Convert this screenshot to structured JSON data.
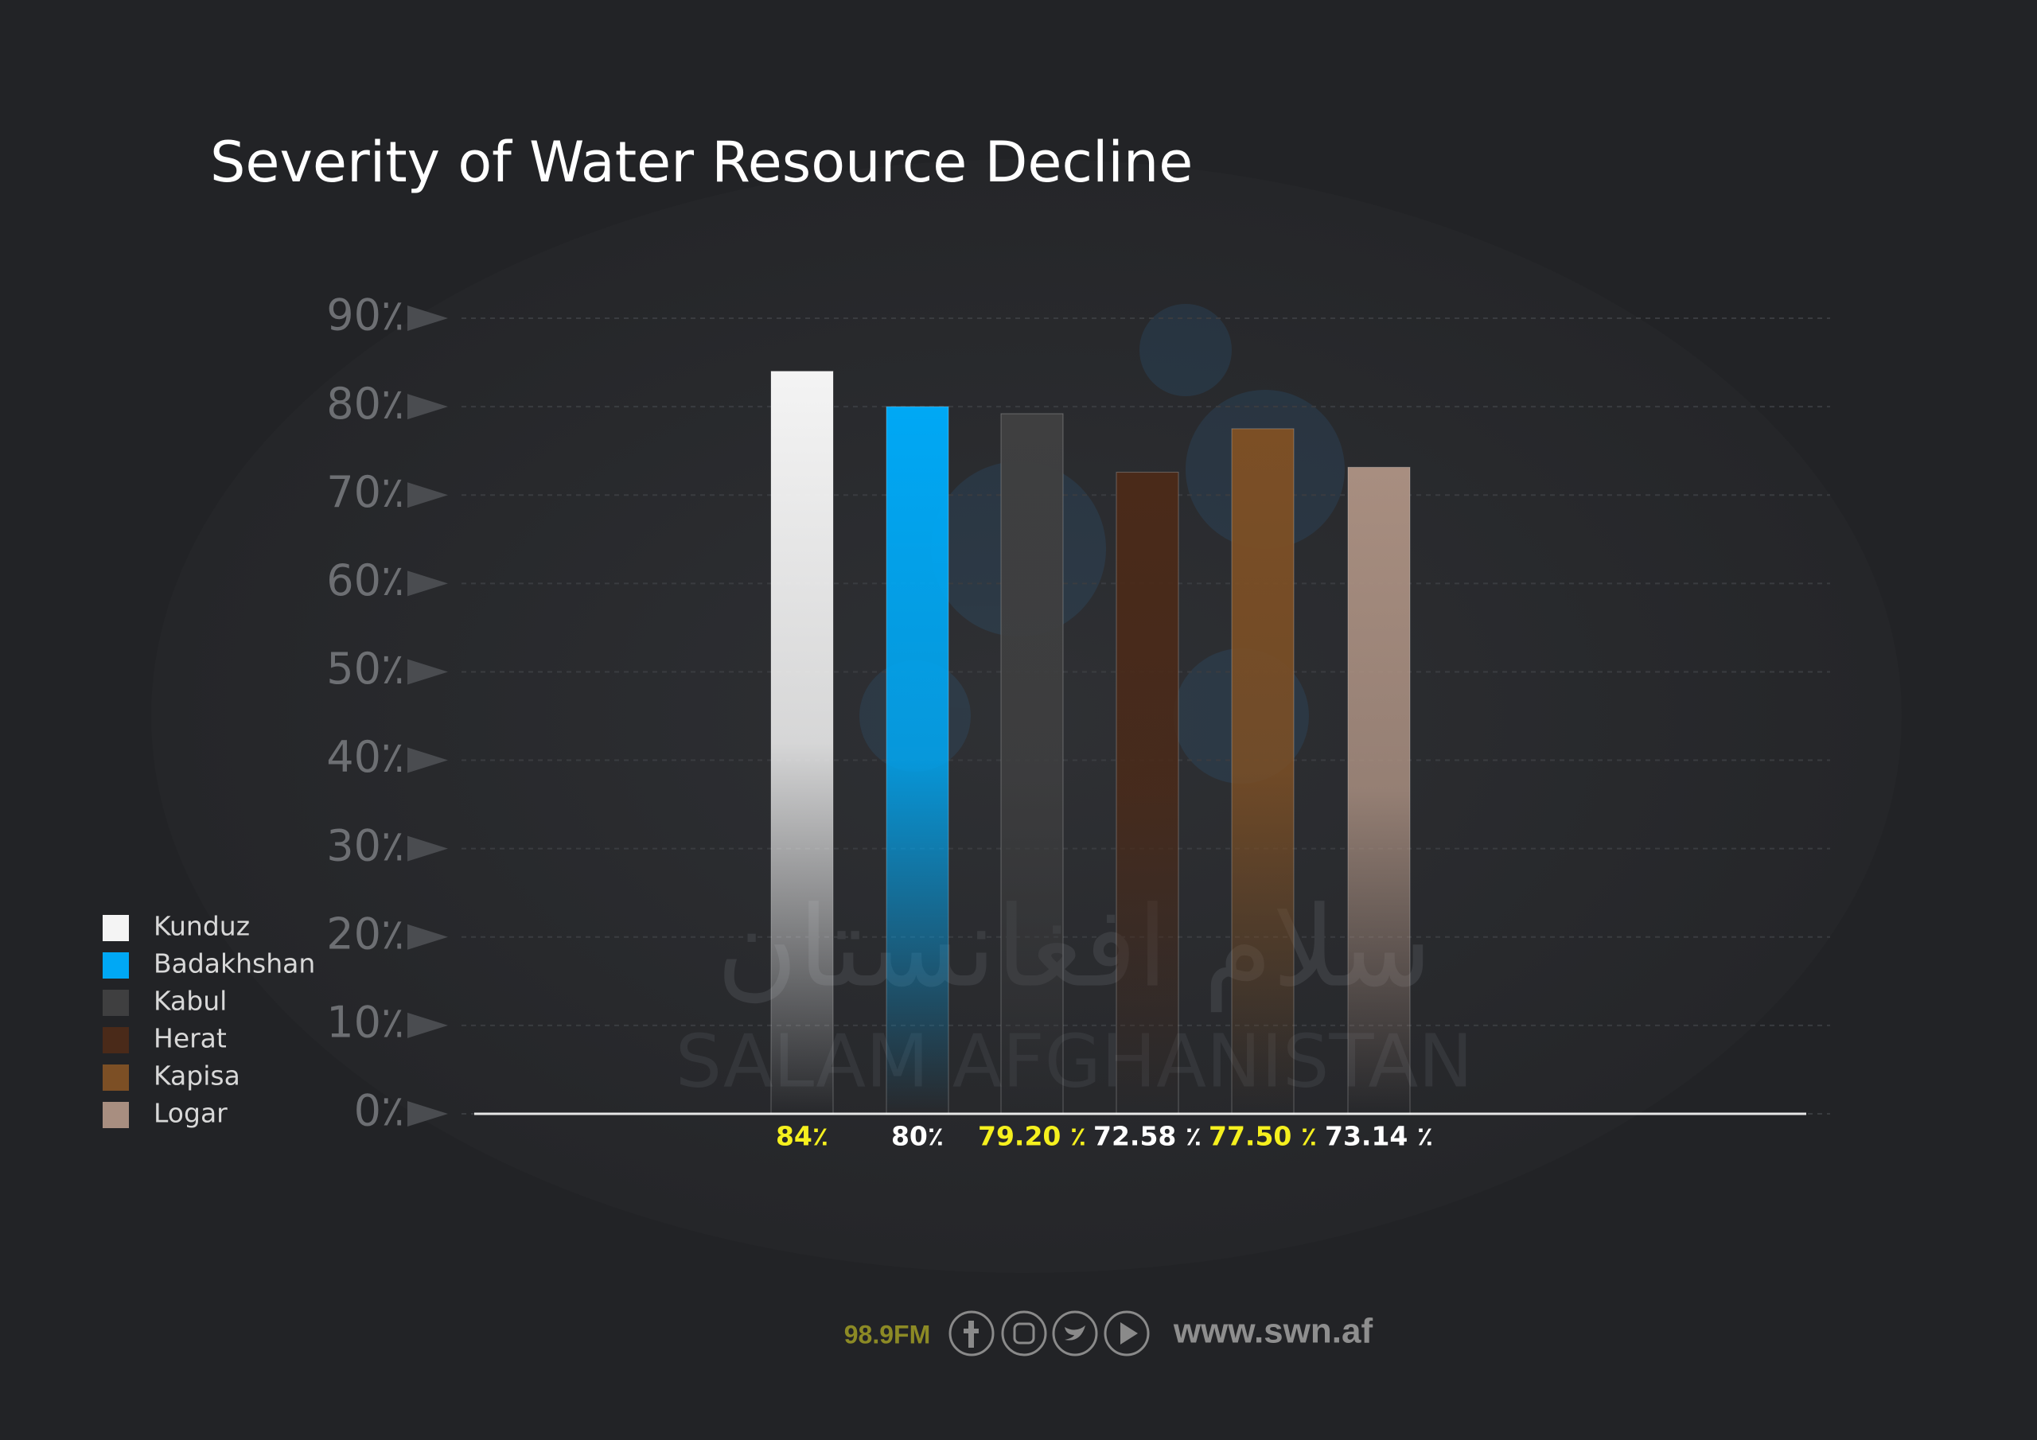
{
  "chart_data": {
    "type": "bar",
    "title": "Severity of Water Resource Decline",
    "categories": [
      "Kunduz",
      "Badakhshan",
      "Kabul",
      "Herat",
      "Kapisa",
      "Logar"
    ],
    "values": [
      84,
      80,
      79.2,
      72.58,
      77.5,
      73.14
    ],
    "value_labels": [
      "84٪",
      "80٪",
      "79.20 ٪",
      "72.58 ٪",
      "77.50 ٪",
      "73.14 ٪"
    ],
    "value_label_colors": [
      "#f5f01e",
      "#ffffff",
      "#f5f01e",
      "#ffffff",
      "#f5f01e",
      "#ffffff"
    ],
    "colors": [
      "#f4f4f4",
      "#00a8f5",
      "#3f3f40",
      "#4a2a19",
      "#7c4f25",
      "#a88e80"
    ],
    "ylim": [
      0,
      90
    ],
    "yticks": [
      {
        "value": 0,
        "label": "0٪"
      },
      {
        "value": 10,
        "label": "10٪"
      },
      {
        "value": 20,
        "label": "20٪"
      },
      {
        "value": 30,
        "label": "30٪"
      },
      {
        "value": 40,
        "label": "40٪"
      },
      {
        "value": 50,
        "label": "50٪"
      },
      {
        "value": 60,
        "label": "60٪"
      },
      {
        "value": 70,
        "label": "70٪"
      },
      {
        "value": 80,
        "label": "80٪"
      },
      {
        "value": 90,
        "label": "90٪"
      }
    ],
    "grid": true,
    "legend": "left"
  },
  "watermark": {
    "arabic": "سلام افغانستان",
    "latin": "SALAM AFGHANISTAN"
  },
  "footer": {
    "radio": "98.9FM",
    "website": "www.swn.af"
  }
}
